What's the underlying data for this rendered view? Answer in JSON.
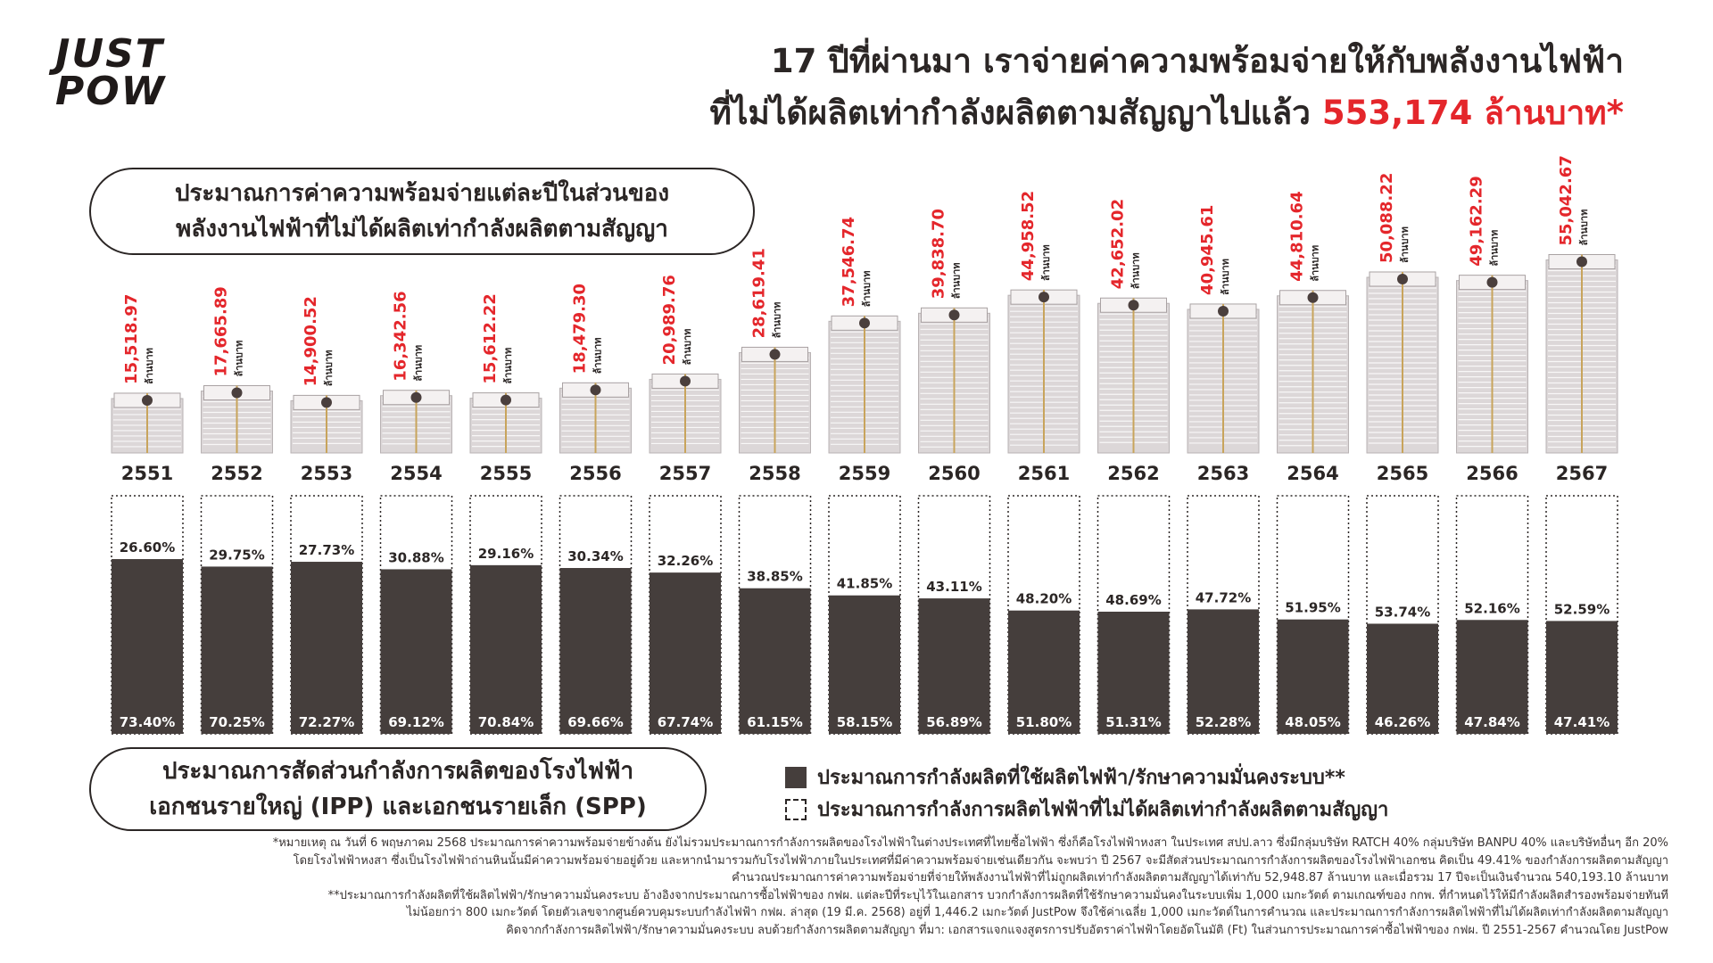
{
  "brand": {
    "line1": "JUST",
    "line2": "POW"
  },
  "title": {
    "line1": "17 ปีที่ผ่านมา เราจ่ายค่าความพร้อมจ่ายให้กับพลังงานไฟฟ้า",
    "line2_prefix": "ที่ไม่ได้ผลิตเท่ากำลังผลิตตามสัญญาไปแล้ว ",
    "line2_highlight": "553,174 ล้านบาท*"
  },
  "top_box": {
    "line1": "ประมาณการค่าความพร้อมจ่ายแต่ละปีในส่วนของ",
    "line2": "พลังงานไฟฟ้าที่ไม่ได้ผลิตเท่ากำลังผลิตตามสัญญา"
  },
  "bottom_box": {
    "line1": "ประมาณการสัดส่วนกำลังการผลิตของโรงไฟฟ้า",
    "line2": "เอกชนรายใหญ่ (IPP) และเอกชนรายเล็ก (SPP)"
  },
  "legend": {
    "filled": "ประมาณการกำลังผลิตที่ใช้ผลิตไฟฟ้า/รักษาความมั่นคงระบบ**",
    "dashed": "ประมาณการกำลังการผลิตไฟฟ้าที่ไม่ได้ผลิตเท่ากำลังผลิตตามสัญญา"
  },
  "colors": {
    "accent": "#e4262b",
    "dark": "#453e3c",
    "text": "#2b2625",
    "money": "#dcd7d8"
  },
  "footnote": [
    "*หมายเหตุ ณ วันที่ 6 พฤษภาคม 2568 ประมาณการค่าความพร้อมจ่ายข้างต้น ยังไม่รวมประมาณการกำลังการผลิตของโรงไฟฟ้าในต่างประเทศที่ไทยซื้อไฟฟ้า ซึ่งก็คือโรงไฟฟ้าหงสา ในประเทศ สปป.ลาว ซึ่งมีกลุ่มบริษัท RATCH 40% กลุ่มบริษัท BANPU 40% และบริษัทอื่นๆ อีก 20%",
    "โดยโรงไฟฟ้าหงสา ซึ่งเป็นโรงไฟฟ้าถ่านหินนั้นมีค่าความพร้อมจ่ายอยู่ด้วย และหากนำมารวมกับโรงไฟฟ้าภายในประเทศที่มีค่าความพร้อมจ่ายเช่นเดียวกัน จะพบว่า ปี 2567 จะมีสัดส่วนประมาณการกำลังการผลิตของโรงไฟฟ้าเอกชน คิดเป็น 49.41% ของกำลังการผลิตตามสัญญา",
    "คำนวณประมาณการค่าความพร้อมจ่ายที่จ่ายให้พลังงานไฟฟ้าที่ไม่ถูกผลิตเท่ากำลังผลิตตามสัญญาได้เท่ากับ 52,948.87 ล้านบาท และเมื่อรวม 17 ปีจะเป็นเงินจำนวณ 540,193.10 ล้านบาท",
    "**ประมาณการกำลังผลิตที่ใช้ผลิตไฟฟ้า/รักษาความมั่นคงระบบ อ้างอิงจากประมาณการซื้อไฟฟ้าของ กฟผ. แต่ละปีที่ระบุไว้ในเอกสาร บวกกำลังการผลิตที่ใช้รักษาความมั่นคงในระบบเพิ่ม 1,000 เมกะวัตต์ ตามเกณฑ์ของ กกพ. ที่กำหนดไว้ให้มีกำลังผลิตสำรองพร้อมจ่ายทันที",
    "ไม่น้อยกว่า 800 เมกะวัตต์ โดยตัวเลขจากศูนย์ควบคุมระบบกำลังไฟฟ้า กฟผ. ล่าสุด (19 มี.ค. 2568) อยู่ที่ 1,446.2 เมกะวัตต์ JustPow จึงใช้ค่าเฉลี่ย 1,000 เมกะวัตต์ในการคำนวณ และประมาณการกำลังการผลิตไฟฟ้าที่ไม่ได้ผลิตเท่ากำลังผลิตตามสัญญา",
    "คิดจากกำลังการผลิตไฟฟ้า/รักษาความมั่นคงระบบ ลบด้วยกำลังการผลิตตามสัญญา ที่มา: เอกสารแจกแจงสูตรการปรับอัตราค่าไฟฟ้าโดยอัตโนมัติ (Ft) ในส่วนการประมาณการค่าซื้อไฟฟ้าของ กฟผ. ปี 2551-2567 คำนวณโดย JustPow"
  ],
  "chart_data": [
    {
      "type": "bar",
      "title": "ประมาณการค่าความพร้อมจ่ายแต่ละปีในส่วนของพลังงานไฟฟ้าที่ไม่ได้ผลิตเท่ากำลังผลิตตามสัญญา",
      "unit": "ล้านบาท",
      "categories": [
        "2551",
        "2552",
        "2553",
        "2554",
        "2555",
        "2556",
        "2557",
        "2558",
        "2559",
        "2560",
        "2561",
        "2562",
        "2563",
        "2564",
        "2565",
        "2566",
        "2567"
      ],
      "values": [
        15518.97,
        17665.89,
        14900.52,
        16342.56,
        15612.22,
        18479.3,
        20989.76,
        28619.41,
        37546.74,
        39838.7,
        44958.52,
        42652.02,
        40945.61,
        44810.64,
        50088.22,
        49162.29,
        55042.67
      ],
      "value_labels": [
        "15,518.97",
        "17,665.89",
        "14,900.52",
        "16,342.56",
        "15,612.22",
        "18,479.30",
        "20,989.76",
        "28,619.41",
        "37,546.74",
        "39,838.70",
        "44,958.52",
        "42,652.02",
        "40,945.61",
        "44,810.64",
        "50,088.22",
        "49,162.29",
        "55,042.67"
      ],
      "xlabel": "",
      "ylabel": "",
      "ylim": [
        0,
        60000
      ]
    },
    {
      "type": "bar",
      "stacked": true,
      "categories": [
        "2551",
        "2552",
        "2553",
        "2554",
        "2555",
        "2556",
        "2557",
        "2558",
        "2559",
        "2560",
        "2561",
        "2562",
        "2563",
        "2564",
        "2565",
        "2566",
        "2567"
      ],
      "series": [
        {
          "name": "ประมาณการกำลังผลิตที่ใช้ผลิตไฟฟ้า/รักษาความมั่นคงระบบ**",
          "values": [
            73.4,
            70.25,
            72.27,
            69.12,
            70.84,
            69.66,
            67.74,
            61.15,
            58.15,
            56.89,
            51.8,
            51.31,
            52.28,
            48.05,
            46.26,
            47.84,
            47.41
          ],
          "labels": [
            "73.40%",
            "70.25%",
            "72.27%",
            "69.12%",
            "70.84%",
            "69.66%",
            "67.74%",
            "61.15%",
            "58.15%",
            "56.89%",
            "51.80%",
            "51.31%",
            "52.28%",
            "48.05%",
            "46.26%",
            "47.84%",
            "47.41%"
          ]
        },
        {
          "name": "ประมาณการกำลังการผลิตไฟฟ้าที่ไม่ได้ผลิตเท่ากำลังผลิตตามสัญญา",
          "values": [
            26.6,
            29.75,
            27.73,
            30.88,
            29.16,
            30.34,
            32.26,
            38.85,
            41.85,
            43.11,
            48.2,
            48.69,
            47.72,
            51.95,
            53.74,
            52.16,
            52.59
          ],
          "labels": [
            "26.60%",
            "29.75%",
            "27.73%",
            "30.88%",
            "29.16%",
            "30.34%",
            "32.26%",
            "38.85%",
            "41.85%",
            "43.11%",
            "48.20%",
            "48.69%",
            "47.72%",
            "51.95%",
            "53.74%",
            "52.16%",
            "52.59%"
          ]
        }
      ],
      "ylim": [
        0,
        100
      ]
    }
  ]
}
